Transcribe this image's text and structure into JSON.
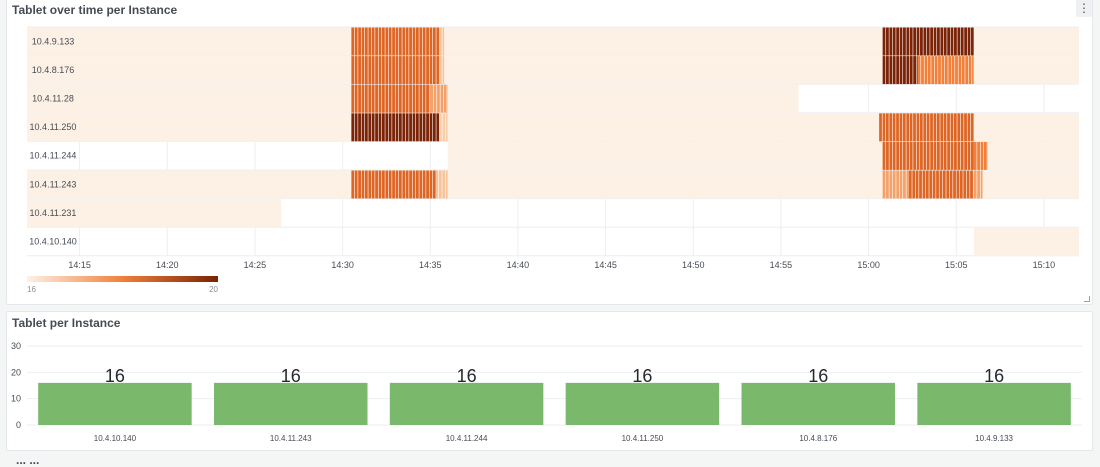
{
  "panels": {
    "heatmap_title": "Tablet over time per Instance",
    "bars_title": "Tablet per Instance",
    "bottom_title": "... ..."
  },
  "icons": {
    "menu": "vertical-dots-icon",
    "resize": "resize-corner-icon"
  },
  "chart_data": [
    {
      "type": "heatmap",
      "title": "Tablet over time per Instance",
      "rows": [
        "10.4.9.133",
        "10.4.8.176",
        "10.4.11.28",
        "10.4.11.250",
        "10.4.11.244",
        "10.4.11.243",
        "10.4.11.231",
        "10.4.10.140"
      ],
      "x_ticks": [
        "14:15",
        "14:20",
        "14:25",
        "14:30",
        "14:35",
        "14:40",
        "14:45",
        "14:50",
        "14:55",
        "15:00",
        "15:05",
        "15:10"
      ],
      "x_range": [
        "14:12",
        "15:12"
      ],
      "color_scale": {
        "min": 16,
        "max": 20,
        "min_color": "#fdf1e6",
        "max_color": "#7a2306",
        "legend_min": "16",
        "legend_max": "20"
      },
      "grid": true,
      "segments": [
        {
          "row": "10.4.9.133",
          "start": "14:12",
          "end": "14:30.5",
          "value": 16
        },
        {
          "row": "10.4.9.133",
          "start": "14:30.5",
          "end": "14:35.5",
          "value": 18.5
        },
        {
          "row": "10.4.9.133",
          "start": "14:35.5",
          "end": "14:35.8",
          "value": 17
        },
        {
          "row": "10.4.9.133",
          "start": "14:35.8",
          "end": "15:00.8",
          "value": 16
        },
        {
          "row": "10.4.9.133",
          "start": "15:00.8",
          "end": "15:06",
          "value": 20
        },
        {
          "row": "10.4.9.133",
          "start": "15:06",
          "end": "15:12",
          "value": 16
        },
        {
          "row": "10.4.8.176",
          "start": "14:12",
          "end": "14:30.5",
          "value": 16
        },
        {
          "row": "10.4.8.176",
          "start": "14:30.5",
          "end": "14:35.5",
          "value": 18.5
        },
        {
          "row": "10.4.8.176",
          "start": "14:35.5",
          "end": "14:35.8",
          "value": 17
        },
        {
          "row": "10.4.8.176",
          "start": "14:35.8",
          "end": "15:00.8",
          "value": 16
        },
        {
          "row": "10.4.8.176",
          "start": "15:00.8",
          "end": "15:02.8",
          "value": 20
        },
        {
          "row": "10.4.8.176",
          "start": "15:02.8",
          "end": "15:06",
          "value": 18
        },
        {
          "row": "10.4.8.176",
          "start": "15:06",
          "end": "15:12",
          "value": 16
        },
        {
          "row": "10.4.11.28",
          "start": "14:12",
          "end": "14:30.5",
          "value": 16
        },
        {
          "row": "10.4.11.28",
          "start": "14:30.5",
          "end": "14:35",
          "value": 18.5
        },
        {
          "row": "10.4.11.28",
          "start": "14:35",
          "end": "14:36",
          "value": 17.5
        },
        {
          "row": "10.4.11.28",
          "start": "14:36",
          "end": "14:56",
          "value": 16
        },
        {
          "row": "10.4.11.250",
          "start": "14:12",
          "end": "14:30.5",
          "value": 16
        },
        {
          "row": "10.4.11.250",
          "start": "14:30.5",
          "end": "14:35.5",
          "value": 20
        },
        {
          "row": "10.4.11.250",
          "start": "14:35.5",
          "end": "14:36",
          "value": 16.8
        },
        {
          "row": "10.4.11.250",
          "start": "14:36",
          "end": "15:00.6",
          "value": 16
        },
        {
          "row": "10.4.11.250",
          "start": "15:00.6",
          "end": "15:06",
          "value": 18.5
        },
        {
          "row": "10.4.11.250",
          "start": "15:06",
          "end": "15:12",
          "value": 16
        },
        {
          "row": "10.4.11.244",
          "start": "14:36",
          "end": "15:00.8",
          "value": 16
        },
        {
          "row": "10.4.11.244",
          "start": "15:00.8",
          "end": "15:06",
          "value": 18.5
        },
        {
          "row": "10.4.11.244",
          "start": "15:06",
          "end": "15:06.8",
          "value": 18
        },
        {
          "row": "10.4.11.244",
          "start": "15:06.8",
          "end": "15:12",
          "value": 16
        },
        {
          "row": "10.4.11.243",
          "start": "14:12",
          "end": "14:30.5",
          "value": 16
        },
        {
          "row": "10.4.11.243",
          "start": "14:30.5",
          "end": "14:35.3",
          "value": 18.5
        },
        {
          "row": "10.4.11.243",
          "start": "14:35.3",
          "end": "14:36",
          "value": 17
        },
        {
          "row": "10.4.11.243",
          "start": "14:36",
          "end": "15:00.8",
          "value": 16
        },
        {
          "row": "10.4.11.243",
          "start": "15:00.8",
          "end": "15:02.3",
          "value": 17.5
        },
        {
          "row": "10.4.11.243",
          "start": "15:02.3",
          "end": "15:06",
          "value": 18.5
        },
        {
          "row": "10.4.11.243",
          "start": "15:06",
          "end": "15:06.5",
          "value": 17.5
        },
        {
          "row": "10.4.11.243",
          "start": "15:06.5",
          "end": "15:12",
          "value": 16
        },
        {
          "row": "10.4.11.231",
          "start": "14:12",
          "end": "14:26.5",
          "value": 16
        },
        {
          "row": "10.4.10.140",
          "start": "15:06",
          "end": "15:12",
          "value": 16
        }
      ]
    },
    {
      "type": "bar",
      "title": "Tablet per Instance",
      "categories": [
        "10.4.10.140",
        "10.4.11.243",
        "10.4.11.244",
        "10.4.11.250",
        "10.4.8.176",
        "10.4.9.133"
      ],
      "values": [
        16,
        16,
        16,
        16,
        16,
        16
      ],
      "value_labels": [
        "16",
        "16",
        "16",
        "16",
        "16",
        "16"
      ],
      "y_ticks": [
        "0",
        "10",
        "20",
        "30"
      ],
      "ylim": [
        0,
        30
      ],
      "bar_color": "#7ab86c",
      "grid": true
    }
  ]
}
